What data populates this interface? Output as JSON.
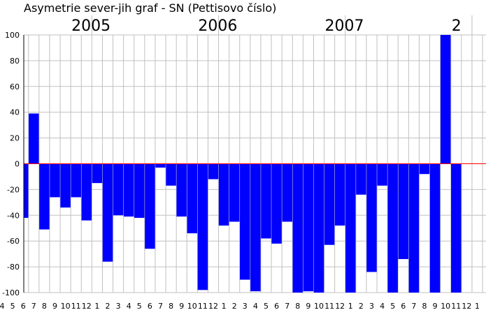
{
  "chart_data": {
    "type": "bar",
    "title": "Asymetrie  sever-jih  graf -  SN (Pettisovo číslo)",
    "xlabel": "",
    "ylabel": "",
    "ylim": [
      -100,
      100
    ],
    "yticks": [
      100,
      80,
      60,
      40,
      20,
      0,
      -20,
      -40,
      -60,
      -80,
      -100
    ],
    "grid": true,
    "legend": "none",
    "year_labels": [
      {
        "label": "2005",
        "at_category_index": 7
      },
      {
        "label": "2006",
        "at_category_index": 19
      },
      {
        "label": "2007",
        "at_category_index": 31
      },
      {
        "label": "2",
        "at_category_index": 43
      }
    ],
    "categories": [
      "4",
      "5",
      "6",
      "7",
      "8",
      "9",
      "10",
      "11",
      "12",
      "1",
      "2",
      "3",
      "4",
      "5",
      "6",
      "7",
      "8",
      "9",
      "10",
      "11",
      "12",
      "1",
      "2",
      "3",
      "4",
      "5",
      "6",
      "7",
      "8",
      "9",
      "10",
      "11",
      "12",
      "1",
      "2",
      "3",
      "4",
      "5",
      "6",
      "7",
      "8",
      "9",
      "10",
      "11",
      "12",
      "1"
    ],
    "values": [
      0,
      0,
      -42,
      39,
      -51,
      -26,
      -34,
      -26,
      -44,
      -15,
      -76,
      -40,
      -41,
      -42,
      -66,
      -3,
      -17,
      -41,
      -54,
      -98,
      -12,
      -48,
      -45,
      -90,
      -99,
      -58,
      -62,
      -45,
      -100,
      -99,
      -100,
      -63,
      -48,
      -100,
      -24,
      -84,
      -17,
      -100,
      -74,
      -100,
      -8,
      -100,
      100,
      -100,
      0,
      0
    ],
    "colors": {
      "bar": "#0000ff",
      "zero_line": "#ff0000",
      "grid": "#c0c0c0",
      "axis": "#000000"
    }
  }
}
